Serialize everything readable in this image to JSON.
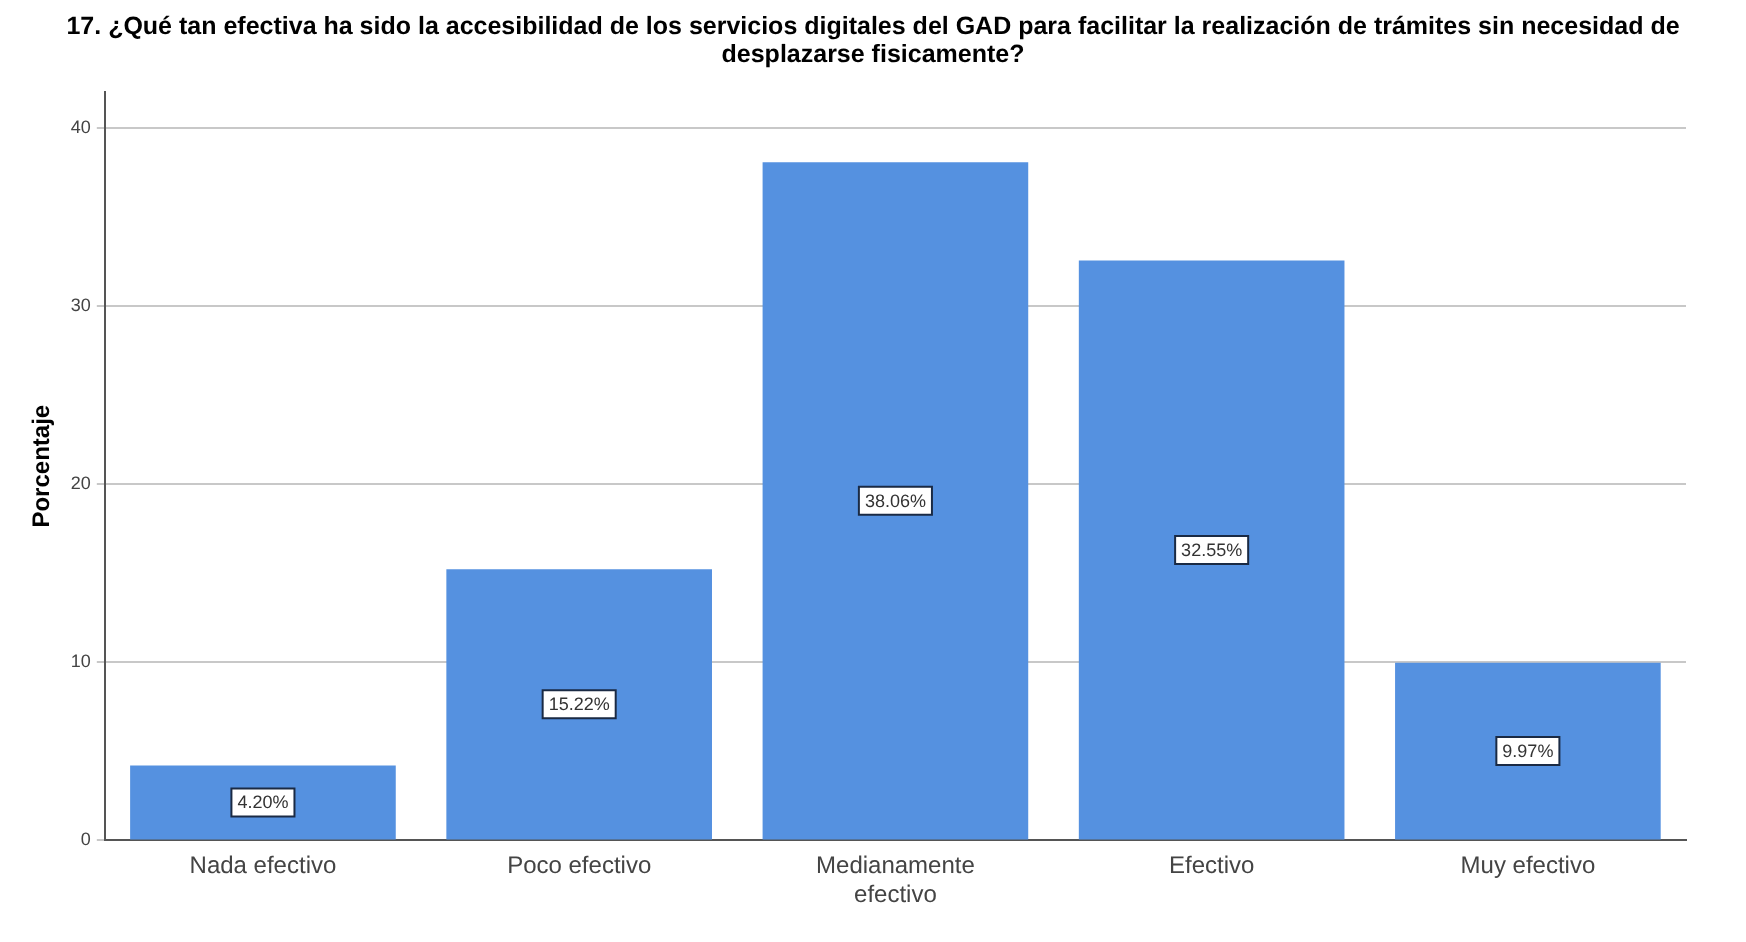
{
  "chart_data": {
    "type": "bar",
    "title": "17. ¿Qué tan efectiva ha sido la accesibilidad de los servicios digitales del GAD para facilitar la realización de trámites sin necesidad de desplazarse fisicamente?",
    "ylabel": "Porcentaje",
    "categories": [
      "Nada efectivo",
      "Poco efectivo",
      "Medianamente efectivo",
      "Efectivo",
      "Muy efectivo"
    ],
    "values": [
      4.2,
      15.22,
      38.06,
      32.55,
      9.97
    ],
    "value_labels": [
      "4.20%",
      "15.22%",
      "38.06%",
      "32.55%",
      "9.97%"
    ],
    "color": "#5591e0",
    "ylim": [
      0,
      42
    ],
    "yticks": [
      0,
      10,
      20,
      30,
      40
    ],
    "grid": "y",
    "legend": false
  }
}
